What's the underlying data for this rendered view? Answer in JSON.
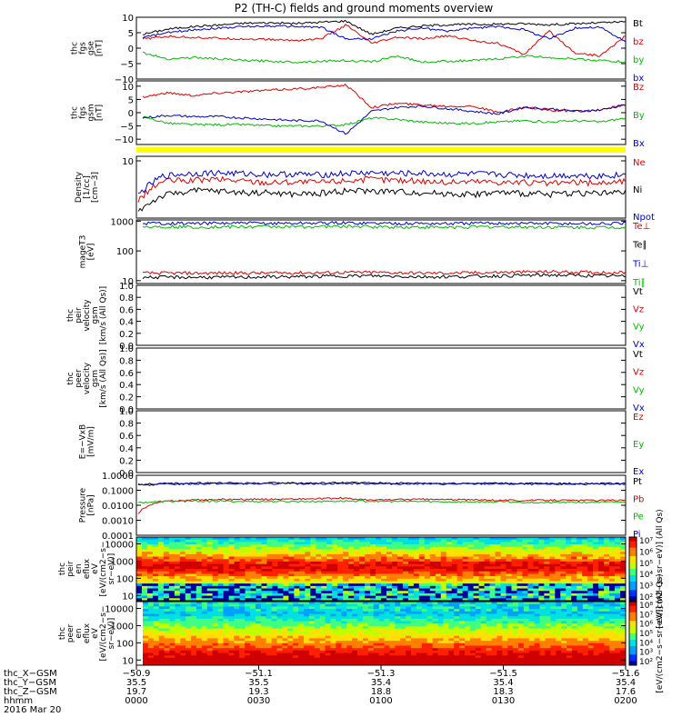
{
  "title": "P2 (TH-C) fields and ground moments overview",
  "chart_data": [
    {
      "type": "line",
      "id": "fgs",
      "ylabel": [
        "thc",
        "fgs",
        "gse",
        "[nT]"
      ],
      "ylim": [
        -10,
        10
      ],
      "yticks": [
        "10",
        "5",
        "0",
        "−5",
        "−10"
      ],
      "series": [
        {
          "name": "Bt",
          "color": "#000000",
          "values": [
            4.5,
            6.2,
            7.0,
            7.5,
            8.1,
            8.2,
            8.0,
            8.4,
            8.8,
            4.5,
            6.5,
            7.2,
            7.6,
            7.7,
            7.8,
            7.9,
            7.6,
            7.9,
            8.2,
            8.5
          ]
        },
        {
          "name": "bz",
          "color": "#dd0000",
          "values": [
            3.0,
            3.8,
            3.5,
            3.2,
            3.0,
            2.8,
            2.5,
            3.0,
            7.5,
            1.5,
            3.5,
            3.0,
            4.0,
            2.5,
            1.5,
            -2.0,
            5.5,
            -1.5,
            -2.5,
            4.0
          ]
        },
        {
          "name": "by",
          "color": "#00bb00",
          "values": [
            -1.5,
            -3.5,
            -3.0,
            -3.5,
            -4.0,
            -4.2,
            -4.5,
            -4.2,
            -4.0,
            -4.5,
            -2.5,
            -4.5,
            -4.2,
            -4.0,
            -3.5,
            -2.5,
            -3.0,
            -3.5,
            -4.0,
            -4.5
          ]
        },
        {
          "name": "bx",
          "color": "#0000cc",
          "values": [
            3.5,
            5.0,
            6.0,
            6.5,
            7.0,
            7.2,
            7.0,
            6.8,
            3.0,
            3.0,
            5.5,
            6.5,
            5.5,
            6.5,
            7.0,
            6.0,
            3.0,
            6.5,
            6.8,
            2.0
          ]
        }
      ]
    },
    {
      "type": "line",
      "id": "fgs-gsm",
      "ylabel": [
        "thc",
        "fgs",
        "gsm",
        "[nT]"
      ],
      "ylim": [
        -12,
        12
      ],
      "yticks": [
        "10",
        "5",
        "0",
        "−5",
        "−10"
      ],
      "series": [
        {
          "name": "Bz",
          "color": "#dd0000",
          "values": [
            6.0,
            7.5,
            6.5,
            7.5,
            8.0,
            8.5,
            9.0,
            9.5,
            10.5,
            2.0,
            3.5,
            3.0,
            2.5,
            2.5,
            0.0,
            2.0,
            1.0,
            0.5,
            1.0,
            3.0
          ]
        },
        {
          "name": "By",
          "color": "#00bb00",
          "values": [
            -1.5,
            -4.0,
            -4.5,
            -4.5,
            -4.5,
            -5.0,
            -5.0,
            -5.0,
            -4.5,
            -2.0,
            -2.5,
            -3.5,
            -4.0,
            -4.0,
            -3.5,
            -3.0,
            -3.5,
            -3.0,
            -3.5,
            -2.0
          ]
        },
        {
          "name": "Bx",
          "color": "#0000cc",
          "values": [
            -2.0,
            -1.0,
            -1.5,
            -1.5,
            -2.0,
            -2.5,
            -3.0,
            -3.0,
            -8.0,
            0.5,
            2.0,
            2.5,
            1.5,
            0.5,
            -0.5,
            2.0,
            1.5,
            0.5,
            1.0,
            3.0
          ]
        }
      ]
    },
    {
      "type": "line",
      "id": "density",
      "ylabel": [
        "Density",
        "[1/cc]",
        "[cm−3]"
      ],
      "ylim": [
        1,
        12
      ],
      "scale": "log",
      "yticks": [
        "10"
      ],
      "series": [
        {
          "name": "Ne",
          "color": "#dd0000",
          "values": [
            2.0,
            4.5,
            4.5,
            4.8,
            4.5,
            4.2,
            4.3,
            4.2,
            4.5,
            4.8,
            4.6,
            4.5,
            4.2,
            4.4,
            4.3,
            4.2,
            4.0,
            4.2,
            4.1,
            4.4
          ]
        },
        {
          "name": "Ni",
          "color": "#000000",
          "values": [
            1.3,
            2.5,
            3.0,
            3.0,
            2.8,
            2.8,
            2.6,
            2.7,
            3.0,
            3.0,
            2.9,
            2.8,
            2.7,
            2.6,
            2.8,
            2.7,
            2.6,
            2.8,
            2.7,
            2.8
          ]
        },
        {
          "name": "Npot",
          "color": "#0000cc",
          "values": [
            2.5,
            5.5,
            6.0,
            6.2,
            6.0,
            5.8,
            5.9,
            5.7,
            6.0,
            6.2,
            6.0,
            6.1,
            5.8,
            5.9,
            5.8,
            5.6,
            5.5,
            5.6,
            5.5,
            5.7
          ]
        }
      ]
    },
    {
      "type": "line",
      "id": "temperature",
      "ylabel": [
        "mageT3",
        "[eV]"
      ],
      "ylim": [
        8,
        1100
      ],
      "scale": "log",
      "yticks": [
        "1000",
        "100",
        "10"
      ],
      "series": [
        {
          "name": "Te⊥",
          "color": "#dd0000",
          "values": [
            18,
            18,
            18,
            18,
            18,
            18,
            18.5,
            18.5,
            19,
            19,
            18.5,
            18,
            18,
            18.5,
            19,
            19.5,
            20,
            19.5,
            19,
            19
          ]
        },
        {
          "name": "Te∥",
          "color": "#000000",
          "values": [
            13,
            13,
            13,
            13,
            13,
            13.5,
            13.5,
            14,
            14.5,
            14.5,
            14,
            13.5,
            13.5,
            14,
            14.5,
            15,
            15.5,
            15,
            14.5,
            14
          ]
        },
        {
          "name": "Ti⊥",
          "color": "#0000cc",
          "values": [
            850,
            860,
            840,
            850,
            860,
            850,
            860,
            870,
            880,
            860,
            850,
            840,
            830,
            850,
            860,
            850,
            840,
            830,
            820,
            840
          ]
        },
        {
          "name": "Ti∥",
          "color": "#00bb00",
          "values": [
            650,
            660,
            640,
            640,
            650,
            660,
            650,
            660,
            670,
            650,
            640,
            630,
            620,
            640,
            650,
            640,
            630,
            620,
            610,
            630
          ]
        }
      ]
    },
    {
      "type": "line",
      "id": "peir-velocity",
      "ylabel": [
        "thc",
        "peir",
        "velocity",
        "gsm",
        "[km/s (All Qs)]"
      ],
      "ylim": [
        0,
        1
      ],
      "yticks": [
        "1.0",
        "0.8",
        "0.6",
        "0.4",
        "0.2",
        "0.0"
      ],
      "series": [
        {
          "name": "Vt",
          "color": "#000000",
          "values": []
        },
        {
          "name": "Vz",
          "color": "#dd0000",
          "values": []
        },
        {
          "name": "Vy",
          "color": "#00bb00",
          "values": []
        },
        {
          "name": "Vx",
          "color": "#0000cc",
          "values": []
        }
      ]
    },
    {
      "type": "line",
      "id": "peer-velocity",
      "ylabel": [
        "thc",
        "peer",
        "velocity",
        "gsm",
        "[km/s (All Qs)]"
      ],
      "ylim": [
        0,
        1
      ],
      "yticks": [
        "1.0",
        "0.8",
        "0.6",
        "0.4",
        "0.2",
        "0.0"
      ],
      "series": [
        {
          "name": "Vt",
          "color": "#000000",
          "values": []
        },
        {
          "name": "Vz",
          "color": "#dd0000",
          "values": []
        },
        {
          "name": "Vy",
          "color": "#00bb00",
          "values": []
        },
        {
          "name": "Vx",
          "color": "#0000cc",
          "values": []
        }
      ]
    },
    {
      "type": "line",
      "id": "efield",
      "ylabel": [
        "E=−VxB",
        "[mV/m]"
      ],
      "ylim": [
        0,
        1
      ],
      "yticks": [
        "1.0",
        "0.8",
        "0.6",
        "0.4",
        "0.2",
        "0.0"
      ],
      "series": [
        {
          "name": "Ez",
          "color": "#dd0000",
          "values": []
        },
        {
          "name": "Ey",
          "color": "#00bb00",
          "values": []
        },
        {
          "name": "Ex",
          "color": "#0000cc",
          "values": []
        }
      ]
    },
    {
      "type": "line",
      "id": "pressure",
      "ylabel": [
        "Pressure",
        "[nPa]"
      ],
      "ylim": [
        0.0001,
        1.0
      ],
      "scale": "log",
      "yticks": [
        "1.0000",
        "0.1000",
        "0.0100",
        "0.0010",
        "0.0001"
      ],
      "series": [
        {
          "name": "Pt",
          "color": "#000000",
          "values": [
            0.25,
            0.28,
            0.3,
            0.31,
            0.3,
            0.3,
            0.31,
            0.3,
            0.32,
            0.31,
            0.3,
            0.3,
            0.29,
            0.3,
            0.3,
            0.29,
            0.28,
            0.29,
            0.28,
            0.29
          ]
        },
        {
          "name": "Pb",
          "color": "#dd0000",
          "values": [
            0.003,
            0.018,
            0.022,
            0.024,
            0.025,
            0.025,
            0.026,
            0.027,
            0.03,
            0.022,
            0.024,
            0.025,
            0.024,
            0.023,
            0.022,
            0.021,
            0.022,
            0.021,
            0.021,
            0.022
          ]
        },
        {
          "name": "Pe",
          "color": "#00bb00",
          "values": [
            0.015,
            0.018,
            0.019,
            0.019,
            0.018,
            0.018,
            0.018,
            0.018,
            0.019,
            0.019,
            0.018,
            0.018,
            0.017,
            0.017,
            0.017,
            0.016,
            0.015,
            0.016,
            0.016,
            0.016
          ]
        },
        {
          "name": "Pi",
          "color": "#0000cc",
          "values": [
            0.22,
            0.25,
            0.27,
            0.28,
            0.27,
            0.27,
            0.28,
            0.27,
            0.29,
            0.28,
            0.27,
            0.27,
            0.26,
            0.27,
            0.27,
            0.26,
            0.25,
            0.26,
            0.25,
            0.26
          ]
        }
      ]
    },
    {
      "type": "heatmap",
      "id": "peir-spectrogram",
      "ylabel": [
        "thc",
        "peir",
        "en",
        "eflux",
        "eV",
        "[eV/(cm2−s−",
        "sr−eV)]"
      ],
      "ylim": [
        5,
        25000
      ],
      "scale": "log",
      "yticks": [
        "10000",
        "1000",
        "100",
        "10"
      ],
      "colorbar": {
        "min_exp": 2,
        "max_exp": 7,
        "label": "[eV/(cm2−s−sr−eV)]  (All Qs)",
        "ticks": [
          "10⁷",
          "10⁶",
          "10⁵",
          "10⁴",
          "10³",
          "10²"
        ]
      }
    },
    {
      "type": "heatmap",
      "id": "peer-spectrogram",
      "ylabel": [
        "thc",
        "peer",
        "en",
        "eflux",
        "eV",
        "[eV/(cm2−s−",
        "sr−eV)]"
      ],
      "ylim": [
        5,
        25000
      ],
      "scale": "log",
      "yticks": [
        "10000",
        "1000",
        "100",
        "10"
      ],
      "colorbar": {
        "min_exp": 2,
        "max_exp": 8,
        "label": "[eV/(cm2−s−sr−eV)]  (All Qs)",
        "ticks": [
          "10⁸",
          "10⁷",
          "10⁶",
          "10⁵",
          "10⁴",
          "10³",
          "10²"
        ]
      }
    }
  ],
  "xaxis": {
    "rows": [
      {
        "label": "thc_X−GSM",
        "values": [
          "−50.9",
          "−51.1",
          "−51.3",
          "−51.5",
          "−51.6"
        ]
      },
      {
        "label": "thc_Y−GSM",
        "values": [
          "35.5",
          "35.5",
          "35.4",
          "35.4",
          "35.4"
        ]
      },
      {
        "label": "thc_Z−GSM",
        "values": [
          "19.7",
          "19.3",
          "18.8",
          "18.3",
          "17.6"
        ]
      },
      {
        "label": "hhmm",
        "values": [
          "0000",
          "0030",
          "0100",
          "0130",
          "0200"
        ]
      }
    ],
    "date": "2016 Mar 20"
  }
}
